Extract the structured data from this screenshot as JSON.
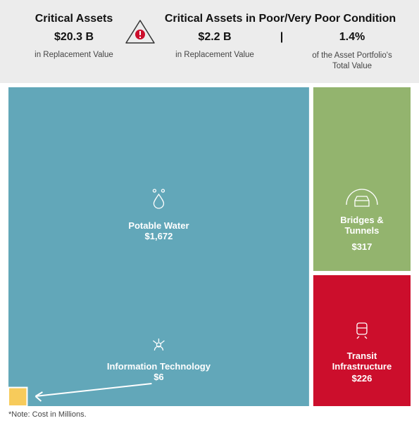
{
  "header": {
    "left": {
      "title": "Critical Assets",
      "value": "$20.3 B",
      "caption": "in Replacement Value"
    },
    "right": {
      "title": "Critical Assets in Poor/Very Poor Condition",
      "value": "$2.2 B",
      "caption": "in Replacement Value",
      "separator": "|",
      "share": "1.4%",
      "share_caption": "of the Asset Portfolio's Total Value"
    }
  },
  "chart_data": {
    "type": "treemap",
    "categories": [
      "Potable Water",
      "Bridges & Tunnels",
      "Transit Infrastructure",
      "Information Technology"
    ],
    "values": [
      1672,
      317,
      226,
      6
    ],
    "value_labels": [
      "$1,672",
      "$317",
      "$226",
      "$6"
    ],
    "colors": [
      "#62a7b9",
      "#93b46e",
      "#cc0e2c",
      "#f7cb5b"
    ]
  },
  "note": "*Note: Cost in Millions."
}
